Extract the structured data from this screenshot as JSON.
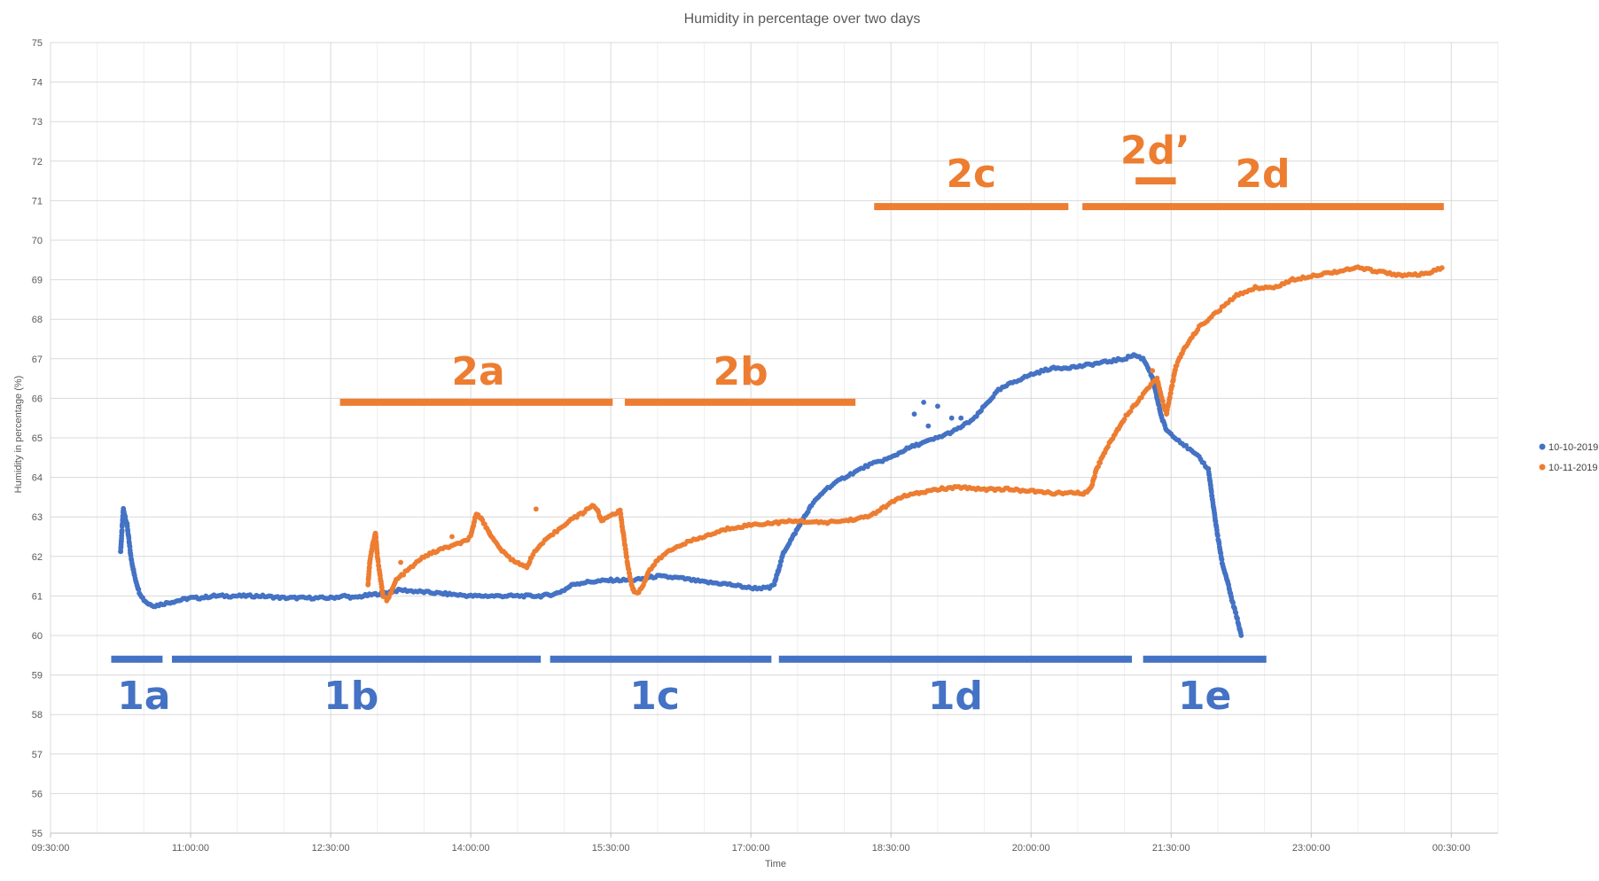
{
  "chart_data": {
    "type": "scatter",
    "title": "Humidity in percentage over two days",
    "xlabel": "Time",
    "ylabel": "Humidity in percentage (%)",
    "ylim": [
      55,
      75
    ],
    "xlim": [
      "09:30:00",
      "00:30:00 (+1 day)"
    ],
    "y_ticks": [
      "55",
      "56",
      "57",
      "58",
      "59",
      "60",
      "61",
      "62",
      "63",
      "64",
      "65",
      "66",
      "67",
      "68",
      "69",
      "70",
      "71",
      "72",
      "73",
      "74",
      "75"
    ],
    "x_ticks": [
      {
        "label": "09:30:00",
        "hours": 9.5
      },
      {
        "label": "11:00:00",
        "hours": 11.0
      },
      {
        "label": "12:30:00",
        "hours": 12.5
      },
      {
        "label": "14:00:00",
        "hours": 14.0
      },
      {
        "label": "15:30:00",
        "hours": 15.5
      },
      {
        "label": "17:00:00",
        "hours": 17.0
      },
      {
        "label": "18:30:00",
        "hours": 18.5
      },
      {
        "label": "20:00:00",
        "hours": 20.0
      },
      {
        "label": "21:30:00",
        "hours": 21.5
      },
      {
        "label": "23:00:00",
        "hours": 23.0
      },
      {
        "label": "00:30:00",
        "hours": 24.5
      }
    ],
    "grid": true,
    "legend_position": "right",
    "series": [
      {
        "name": "10-10-2019",
        "color": "#4472C4",
        "x_unit": "hours",
        "points": [
          [
            10.25,
            62.1
          ],
          [
            10.28,
            63.2
          ],
          [
            10.32,
            62.8
          ],
          [
            10.36,
            62.0
          ],
          [
            10.4,
            61.5
          ],
          [
            10.45,
            61.1
          ],
          [
            10.5,
            60.9
          ],
          [
            10.55,
            60.8
          ],
          [
            10.62,
            60.75
          ],
          [
            10.7,
            60.8
          ],
          [
            10.8,
            60.85
          ],
          [
            10.9,
            60.9
          ],
          [
            11.0,
            60.95
          ],
          [
            11.1,
            60.95
          ],
          [
            11.25,
            61.0
          ],
          [
            11.5,
            61.0
          ],
          [
            11.75,
            61.0
          ],
          [
            12.0,
            60.95
          ],
          [
            12.25,
            60.95
          ],
          [
            12.5,
            60.95
          ],
          [
            12.65,
            61.0
          ],
          [
            12.75,
            60.95
          ],
          [
            12.85,
            61.0
          ],
          [
            13.0,
            61.05
          ],
          [
            13.25,
            61.15
          ],
          [
            13.5,
            61.1
          ],
          [
            13.75,
            61.05
          ],
          [
            14.0,
            61.0
          ],
          [
            14.25,
            61.0
          ],
          [
            14.5,
            61.0
          ],
          [
            14.75,
            61.0
          ],
          [
            14.9,
            61.05
          ],
          [
            15.0,
            61.15
          ],
          [
            15.1,
            61.3
          ],
          [
            15.25,
            61.35
          ],
          [
            15.5,
            61.4
          ],
          [
            15.75,
            61.4
          ],
          [
            16.0,
            61.5
          ],
          [
            16.25,
            61.45
          ],
          [
            16.5,
            61.35
          ],
          [
            16.75,
            61.3
          ],
          [
            17.0,
            61.2
          ],
          [
            17.2,
            61.2
          ],
          [
            17.25,
            61.3
          ],
          [
            17.3,
            61.7
          ],
          [
            17.35,
            62.1
          ],
          [
            17.45,
            62.5
          ],
          [
            17.55,
            62.9
          ],
          [
            17.65,
            63.3
          ],
          [
            17.8,
            63.7
          ],
          [
            18.0,
            64.0
          ],
          [
            18.25,
            64.3
          ],
          [
            18.5,
            64.5
          ],
          [
            18.65,
            64.7
          ],
          [
            18.75,
            64.8
          ],
          [
            19.0,
            65.0
          ],
          [
            19.2,
            65.2
          ],
          [
            19.4,
            65.5
          ],
          [
            19.5,
            65.8
          ],
          [
            19.65,
            66.2
          ],
          [
            19.8,
            66.4
          ],
          [
            20.0,
            66.6
          ],
          [
            20.2,
            66.75
          ],
          [
            20.5,
            66.8
          ],
          [
            20.75,
            66.9
          ],
          [
            21.0,
            67.0
          ],
          [
            21.1,
            67.1
          ],
          [
            21.2,
            67.0
          ],
          [
            21.25,
            66.8
          ],
          [
            21.3,
            66.5
          ],
          [
            21.35,
            66.0
          ],
          [
            21.4,
            65.5
          ],
          [
            21.45,
            65.2
          ],
          [
            21.5,
            65.1
          ],
          [
            21.6,
            64.9
          ],
          [
            21.7,
            64.7
          ],
          [
            21.8,
            64.5
          ],
          [
            21.9,
            64.2
          ],
          [
            21.95,
            63.3
          ],
          [
            22.0,
            62.5
          ],
          [
            22.05,
            61.8
          ],
          [
            22.1,
            61.4
          ],
          [
            22.15,
            60.9
          ],
          [
            22.2,
            60.5
          ],
          [
            22.25,
            60.0
          ]
        ],
        "outliers": [
          [
            18.75,
            65.6
          ],
          [
            18.85,
            65.9
          ],
          [
            19.0,
            65.8
          ],
          [
            19.15,
            65.5
          ],
          [
            19.25,
            65.5
          ],
          [
            18.9,
            65.3
          ]
        ]
      },
      {
        "name": "10-11-2019",
        "color": "#ED7D31",
        "x_unit": "hours",
        "points": [
          [
            12.9,
            61.3
          ],
          [
            12.92,
            61.9
          ],
          [
            12.95,
            62.3
          ],
          [
            12.98,
            62.6
          ],
          [
            13.0,
            62.0
          ],
          [
            13.03,
            61.5
          ],
          [
            13.06,
            61.0
          ],
          [
            13.1,
            60.9
          ],
          [
            13.15,
            61.1
          ],
          [
            13.2,
            61.4
          ],
          [
            13.3,
            61.6
          ],
          [
            13.4,
            61.8
          ],
          [
            13.5,
            62.0
          ],
          [
            13.6,
            62.1
          ],
          [
            13.7,
            62.2
          ],
          [
            13.85,
            62.3
          ],
          [
            13.95,
            62.4
          ],
          [
            14.0,
            62.5
          ],
          [
            14.03,
            62.8
          ],
          [
            14.06,
            63.1
          ],
          [
            14.1,
            63.0
          ],
          [
            14.15,
            62.8
          ],
          [
            14.25,
            62.4
          ],
          [
            14.35,
            62.1
          ],
          [
            14.45,
            61.9
          ],
          [
            14.55,
            61.8
          ],
          [
            14.6,
            61.7
          ],
          [
            14.65,
            62.0
          ],
          [
            14.75,
            62.3
          ],
          [
            14.9,
            62.6
          ],
          [
            15.05,
            62.9
          ],
          [
            15.2,
            63.1
          ],
          [
            15.3,
            63.3
          ],
          [
            15.35,
            63.2
          ],
          [
            15.4,
            62.9
          ],
          [
            15.5,
            63.05
          ],
          [
            15.6,
            63.15
          ],
          [
            15.62,
            62.8
          ],
          [
            15.65,
            62.3
          ],
          [
            15.68,
            61.8
          ],
          [
            15.72,
            61.3
          ],
          [
            15.75,
            61.1
          ],
          [
            15.8,
            61.1
          ],
          [
            15.85,
            61.3
          ],
          [
            15.9,
            61.6
          ],
          [
            16.0,
            61.9
          ],
          [
            16.1,
            62.1
          ],
          [
            16.25,
            62.3
          ],
          [
            16.5,
            62.5
          ],
          [
            16.75,
            62.7
          ],
          [
            17.0,
            62.8
          ],
          [
            17.25,
            62.85
          ],
          [
            17.5,
            62.9
          ],
          [
            17.75,
            62.85
          ],
          [
            18.0,
            62.9
          ],
          [
            18.25,
            63.0
          ],
          [
            18.4,
            63.2
          ],
          [
            18.6,
            63.5
          ],
          [
            18.8,
            63.6
          ],
          [
            19.0,
            63.7
          ],
          [
            19.25,
            63.75
          ],
          [
            19.5,
            63.7
          ],
          [
            19.75,
            63.7
          ],
          [
            20.0,
            63.65
          ],
          [
            20.25,
            63.6
          ],
          [
            20.5,
            63.6
          ],
          [
            20.6,
            63.6
          ],
          [
            20.65,
            63.8
          ],
          [
            20.7,
            64.2
          ],
          [
            20.8,
            64.7
          ],
          [
            20.9,
            65.1
          ],
          [
            21.0,
            65.5
          ],
          [
            21.1,
            65.8
          ],
          [
            21.2,
            66.1
          ],
          [
            21.3,
            66.4
          ],
          [
            21.35,
            66.5
          ],
          [
            21.4,
            66.0
          ],
          [
            21.45,
            65.6
          ],
          [
            21.5,
            66.2
          ],
          [
            21.55,
            66.8
          ],
          [
            21.65,
            67.3
          ],
          [
            21.8,
            67.8
          ],
          [
            22.0,
            68.2
          ],
          [
            22.2,
            68.6
          ],
          [
            22.4,
            68.8
          ],
          [
            22.6,
            68.8
          ],
          [
            22.8,
            69.0
          ],
          [
            23.0,
            69.1
          ],
          [
            23.25,
            69.2
          ],
          [
            23.5,
            69.3
          ],
          [
            23.75,
            69.2
          ],
          [
            24.0,
            69.1
          ],
          [
            24.25,
            69.15
          ],
          [
            24.4,
            69.3
          ]
        ],
        "outliers": [
          [
            13.8,
            62.5
          ],
          [
            14.2,
            62.6
          ],
          [
            14.7,
            63.2
          ],
          [
            13.25,
            61.85
          ],
          [
            21.3,
            66.7
          ]
        ]
      }
    ],
    "annotations": [
      {
        "label": "1a",
        "color": "#4472C4",
        "y": 59.4,
        "start": 10.15,
        "end": 10.7,
        "text_x": 10.5,
        "text_y": 58.5
      },
      {
        "label": "1b",
        "color": "#4472C4",
        "y": 59.4,
        "start": 10.8,
        "end": 14.75,
        "text_x": 12.72,
        "text_y": 58.5
      },
      {
        "label": "1c",
        "color": "#4472C4",
        "y": 59.4,
        "start": 14.85,
        "end": 17.22,
        "text_x": 15.97,
        "text_y": 58.5
      },
      {
        "label": "1d",
        "color": "#4472C4",
        "y": 59.4,
        "start": 17.3,
        "end": 21.08,
        "text_x": 19.19,
        "text_y": 58.5
      },
      {
        "label": "1e",
        "color": "#4472C4",
        "y": 59.4,
        "start": 21.2,
        "end": 22.52,
        "text_x": 21.86,
        "text_y": 58.5
      },
      {
        "label": "2a",
        "color": "#ED7D31",
        "y": 65.9,
        "start": 12.6,
        "end": 15.52,
        "text_x": 14.08,
        "text_y": 66.7
      },
      {
        "label": "2b",
        "color": "#ED7D31",
        "y": 65.9,
        "start": 15.65,
        "end": 18.12,
        "text_x": 16.89,
        "text_y": 66.7
      },
      {
        "label": "2c",
        "color": "#ED7D31",
        "y": 70.85,
        "start": 18.32,
        "end": 20.4,
        "text_x": 19.36,
        "text_y": 71.7
      },
      {
        "label": "2d",
        "color": "#ED7D31",
        "y": 70.85,
        "start": 20.55,
        "end": 24.42,
        "text_x": 22.48,
        "text_y": 71.7
      },
      {
        "label": "2d’",
        "color": "#ED7D31",
        "y": 71.5,
        "start": 21.12,
        "end": 21.55,
        "text_x": 21.33,
        "text_y": 72.3
      }
    ]
  }
}
